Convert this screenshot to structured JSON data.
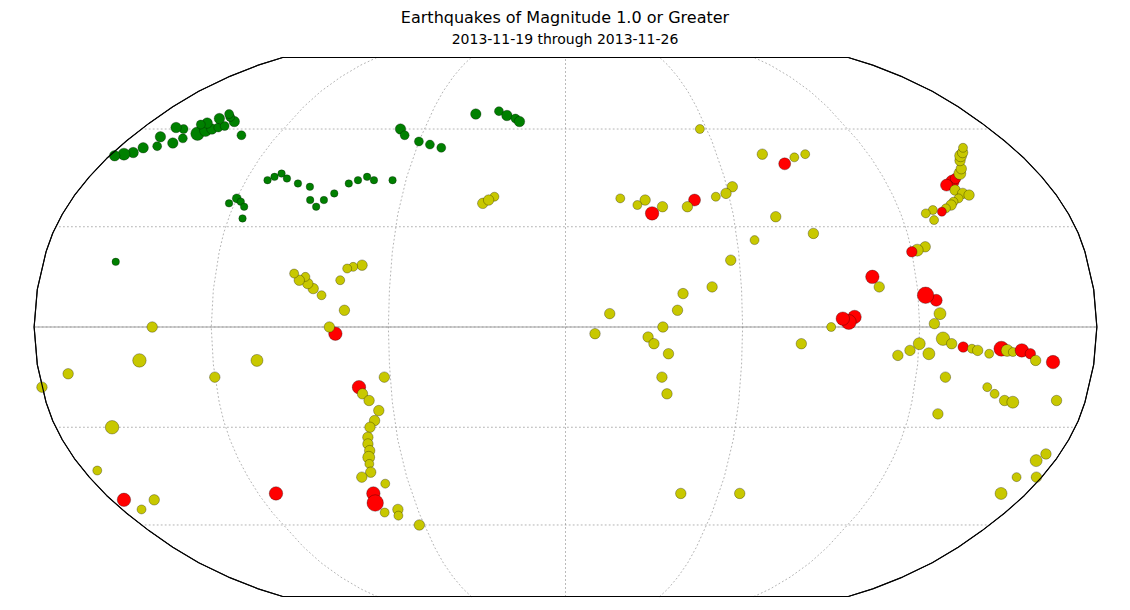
{
  "chart_data": {
    "type": "scatter",
    "title": "Earthquakes of Magnitude 1.0 or Greater",
    "subtitle": "2013-11-19 through 2013-11-26",
    "grid": true,
    "x": [
      145.0,
      147.0,
      150.0,
      152.0,
      154.0,
      156.0,
      158.0,
      160.0,
      142.0,
      144.0,
      146.0,
      148.0,
      143.5,
      141.0,
      139.5,
      137.0,
      132.0,
      129.0,
      131.0,
      135.0,
      125.0,
      122.0,
      120.0,
      105.0,
      107.0,
      98.0,
      96.0,
      94.0,
      126.0,
      122.5,
      127.0,
      125.0,
      120.0,
      117.0,
      113.0,
      123.5,
      128.0,
      131.0,
      135.0,
      138.0,
      140.0,
      144.0,
      148.0,
      150.0,
      152.0,
      155.0,
      158.0,
      160.0,
      166.0,
      130.0,
      145.0,
      148.0,
      152.0,
      155.0,
      170.0,
      173.0,
      175.0,
      170.5,
      130.0,
      62.0,
      59.0,
      55.0,
      47.0,
      44.0,
      35.0,
      31.0,
      29.0,
      26.0,
      20.0,
      57.0,
      78.0,
      85.0,
      90.0,
      95.0,
      87.0,
      75.0,
      66.0,
      -170.0,
      -165.0,
      -160.0,
      -158.0,
      -154.0,
      -152.0,
      -150.0,
      -148.0,
      -146.0,
      -144.0,
      -148.0,
      -150.0,
      -152.0,
      -155.0,
      -157.0,
      -162.0,
      -166.0,
      -168.0,
      -172.0,
      -175.0,
      -178.0,
      -120.0,
      -118.0,
      -116.0,
      -122.0,
      -115.0,
      -112.0,
      -110.0,
      -108.0,
      -105.0,
      -100.0,
      -95.0,
      -93.0,
      -90.0,
      -88.0,
      -85.0,
      -81.0,
      -78.0,
      -75.0,
      -72.0,
      -65.0,
      -70.0,
      -73.0,
      -75.0,
      -77.0,
      -83.0,
      -86.0,
      -88.0,
      -89.0,
      -91.0,
      -93.0,
      -71.0,
      -70.0,
      -68.0,
      -65.0,
      -67.0,
      -69.0,
      -70.5,
      -71.0,
      -71.0,
      -72.0,
      -72.5,
      -73.0,
      -75.0,
      -76.0,
      -74.0,
      -68.0,
      -62.0,
      -69.0,
      -77.0,
      -62.0,
      -78.0,
      -80.0,
      -75.0,
      -105.0,
      -180.0,
      -160.0,
      170.0,
      178.0,
      -175.0,
      -170.0,
      -70.0,
      -67.0,
      -60.0,
      -55.0,
      -50.0,
      -40.0,
      -30.0,
      -26.0,
      -22.0,
      -20.0,
      -155.0,
      -135.0,
      10.0,
      15.0,
      38.0,
      40.0,
      28.0,
      30.0,
      35.0,
      33.0,
      33.0,
      35.0,
      50.0,
      57.0,
      -30.0,
      -26.0,
      -28.0,
      -140.0,
      -145.0,
      -120.0,
      80.0,
      68.0,
      45.0,
      90.0,
      -175.0,
      -172.0,
      -163.0,
      -113.0,
      -69.0
    ],
    "values": [
      43.5,
      44.5,
      46.0,
      47.5,
      50.0,
      51.5,
      52.5,
      54.0,
      42.5,
      41.0,
      40.0,
      39.5,
      38.5,
      37.5,
      36.5,
      35.5,
      35.0,
      34.0,
      32.0,
      34.5,
      24.0,
      23.0,
      22.5,
      15.0,
      12.0,
      3.0,
      1.5,
      2.5,
      8.0,
      9.5,
      4.0,
      1.0,
      -5.0,
      -7.0,
      -8.5,
      -8.0,
      -3.5,
      -5.0,
      -6.0,
      -6.5,
      -7.0,
      -8.0,
      -6.5,
      -7.0,
      -7.5,
      -7.0,
      -8.0,
      -10.0,
      -10.5,
      -15.0,
      -18.0,
      -20.0,
      -22.0,
      -22.5,
      -22.0,
      -40.0,
      -38.0,
      -45.0,
      -26.0,
      42.0,
      40.0,
      39.0,
      38.0,
      36.0,
      36.0,
      34.0,
      38.0,
      36.5,
      38.5,
      60.0,
      52.0,
      49.0,
      51.0,
      52.0,
      28.0,
      33.0,
      26.0,
      54.0,
      54.5,
      55.5,
      57.0,
      58.5,
      59.5,
      60.0,
      60.5,
      61.0,
      62.5,
      64.0,
      65.0,
      63.5,
      62.0,
      61.5,
      60.0,
      60.5,
      57.5,
      52.5,
      52.0,
      51.5,
      38.5,
      37.5,
      36.0,
      37.0,
      32.5,
      44.0,
      45.0,
      46.0,
      44.5,
      43.0,
      42.0,
      38.0,
      36.0,
      38.0,
      40.0,
      43.0,
      44.0,
      45.0,
      44.0,
      44.0,
      18.5,
      18.0,
      17.5,
      14.0,
      9.5,
      11.5,
      13.0,
      15.0,
      14.0,
      16.0,
      -18.0,
      -20.0,
      -22.0,
      -25.0,
      -28.0,
      -30.0,
      -33.0,
      -35.0,
      -37.0,
      -39.0,
      -41.0,
      -43.5,
      -50.0,
      -53.0,
      -56.0,
      -55.0,
      -60.0,
      -47.0,
      -45.0,
      -15.0,
      -2.0,
      0.0,
      5.0,
      -10.0,
      -18.0,
      -30.0,
      -50.0,
      -45.0,
      -43.0,
      -14.0,
      60.0,
      58.0,
      56.0,
      55.0,
      54.0,
      65.0,
      66.0,
      64.5,
      63.5,
      62.5,
      19.5,
      58.0,
      -2.0,
      4.0,
      5.0,
      10.0,
      -3.0,
      -5.0,
      -8.0,
      0.0,
      -15.0,
      -20.0,
      12.0,
      20.0,
      37.0,
      39.0,
      38.0,
      0.0,
      -10.0,
      -15.0,
      -5.0,
      -50.0,
      -50.0,
      0.0,
      -52.0,
      -55.0,
      -52.0,
      -50.0,
      -57.0
    ],
    "sizes": [
      4.5,
      3.5,
      4.0,
      3.5,
      3.5,
      4.0,
      3.5,
      3.0,
      4.0,
      3.5,
      3.5,
      3.5,
      3.0,
      3.0,
      3.5,
      3.0,
      3.0,
      3.0,
      3.0,
      3.0,
      3.5,
      4.0,
      3.5,
      4.5,
      3.5,
      4.5,
      5.0,
      4.5,
      4.0,
      5.5,
      4.0,
      3.5,
      4.0,
      3.5,
      3.5,
      4.0,
      4.5,
      3.5,
      3.5,
      3.0,
      3.5,
      3.0,
      5.0,
      4.0,
      3.0,
      4.5,
      3.5,
      3.5,
      4.5,
      3.5,
      3.0,
      3.0,
      3.5,
      4.0,
      3.5,
      4.0,
      3.5,
      3.0,
      3.5,
      3.5,
      3.5,
      3.0,
      4.0,
      3.5,
      3.5,
      4.5,
      3.5,
      3.0,
      3.0,
      3.0,
      3.5,
      4.0,
      3.0,
      3.0,
      3.5,
      3.5,
      3.0,
      3.5,
      3.0,
      3.5,
      3.0,
      4.5,
      4.0,
      3.5,
      3.0,
      3.0,
      3.5,
      3.0,
      3.0,
      3.5,
      3.5,
      3.0,
      3.0,
      3.5,
      3.5,
      3.5,
      4.0,
      3.5,
      3.0,
      2.5,
      2.5,
      2.5,
      2.5,
      2.5,
      2.5,
      2.5,
      2.5,
      2.5,
      2.5,
      2.5,
      2.5,
      2.5,
      2.5,
      2.5,
      2.5,
      2.5,
      2.5,
      2.5,
      3.5,
      3.0,
      3.0,
      3.0,
      3.0,
      3.5,
      3.5,
      3.0,
      3.5,
      3.0,
      4.5,
      3.5,
      3.5,
      3.5,
      3.5,
      3.5,
      3.5,
      3.5,
      3.5,
      4.0,
      3.0,
      3.5,
      4.5,
      5.5,
      3.0,
      3.5,
      3.5,
      3.0,
      3.5,
      3.5,
      4.5,
      3.5,
      3.5,
      4.0,
      3.5,
      4.5,
      4.0,
      3.5,
      3.0,
      3.5,
      3.5,
      3.0,
      3.0,
      3.0,
      3.0,
      3.5,
      3.0,
      3.5,
      3.0,
      3.5,
      2.5,
      3.0,
      3.5,
      3.5,
      3.5,
      3.5,
      3.5,
      3.5,
      3.5,
      3.5,
      3.5,
      3.5,
      3.5,
      3.5,
      3.5,
      3.0,
      3.5,
      3.5,
      4.5,
      3.5,
      3.5,
      3.5,
      3.5,
      3.0,
      4.5,
      3.0,
      3.5,
      4.5,
      3.0
    ],
    "colors": [
      "#ff0000",
      "#ff0000",
      "#c8c800",
      "#c8c800",
      "#c8c800",
      "#c8c800",
      "#c8c800",
      "#c8c800",
      "#ff0000",
      "#c8c800",
      "#c8c800",
      "#c8c800",
      "#c8c800",
      "#c8c800",
      "#c8c800",
      "#c8c800",
      "#c8c800",
      "#c8c800",
      "#c8c800",
      "#ff0000",
      "#c8c800",
      "#c8c800",
      "#ff0000",
      "#ff0000",
      "#c8c800",
      "#ff0000",
      "#ff0000",
      "#ff0000",
      "#ff0000",
      "#ff0000",
      "#c8c800",
      "#c8c800",
      "#c8c800",
      "#c8c800",
      "#c8c800",
      "#c8c800",
      "#c8c800",
      "#c8c800",
      "#ff0000",
      "#c8c800",
      "#c8c800",
      "#c8c800",
      "#ff0000",
      "#c8c800",
      "#c8c800",
      "#ff0000",
      "#ff0000",
      "#c8c800",
      "#ff0000",
      "#c8c800",
      "#c8c800",
      "#c8c800",
      "#c8c800",
      "#c8c800",
      "#c8c800",
      "#c8c800",
      "#c8c800",
      "#c8c800",
      "#c8c800",
      "#c8c800",
      "#c8c800",
      "#c8c800",
      "#ff0000",
      "#c8c800",
      "#c8c800",
      "#ff0000",
      "#c8c800",
      "#c8c800",
      "#c8c800",
      "#c8c800",
      "#c8c800",
      "#ff0000",
      "#c8c800",
      "#c8c800",
      "#c8c800",
      "#c8c800",
      "#c8c800",
      "#008000",
      "#008000",
      "#008000",
      "#008000",
      "#008000",
      "#008000",
      "#008000",
      "#008000",
      "#008000",
      "#008000",
      "#008000",
      "#008000",
      "#008000",
      "#008000",
      "#008000",
      "#008000",
      "#008000",
      "#008000",
      "#008000",
      "#008000",
      "#008000",
      "#008000",
      "#008000",
      "#008000",
      "#008000",
      "#008000",
      "#008000",
      "#008000",
      "#008000",
      "#008000",
      "#008000",
      "#008000",
      "#008000",
      "#008000",
      "#008000",
      "#008000",
      "#008000",
      "#008000",
      "#008000",
      "#008000",
      "#008000",
      "#c8c800",
      "#c8c800",
      "#c8c800",
      "#c8c800",
      "#c8c800",
      "#c8c800",
      "#c8c800",
      "#c8c800",
      "#c8c800",
      "#c8c800",
      "#ff0000",
      "#c8c800",
      "#c8c800",
      "#c8c800",
      "#c8c800",
      "#c8c800",
      "#c8c800",
      "#c8c800",
      "#c8c800",
      "#c8c800",
      "#c8c800",
      "#c8c800",
      "#ff0000",
      "#ff0000",
      "#c8c800",
      "#c8c800",
      "#c8c800",
      "#c8c800",
      "#c8c800",
      "#c8c800",
      "#ff0000",
      "#c8c800",
      "#c8c800",
      "#c8c800",
      "#c8c800",
      "#c8c800",
      "#c8c800",
      "#c8c800",
      "#c8c800",
      "#c8c800",
      "#008000",
      "#008000",
      "#008000",
      "#008000",
      "#008000",
      "#008000",
      "#008000",
      "#008000",
      "#008000",
      "#008000",
      "#008000",
      "#008000",
      "#c8c800",
      "#c8c800",
      "#c8c800",
      "#c8c800",
      "#c8c800",
      "#c8c800",
      "#c8c800",
      "#c8c800",
      "#c8c800",
      "#c8c800",
      "#c8c800",
      "#c8c800",
      "#c8c800",
      "#c8c800",
      "#c8c800",
      "#c8c800",
      "#c8c800",
      "#c8c800",
      "#c8c800",
      "#c8c800",
      "#c8c800",
      "#c8c800",
      "#ff0000",
      "#c8c800",
      "#c8c800",
      "#ff0000",
      "#c8c800"
    ]
  }
}
